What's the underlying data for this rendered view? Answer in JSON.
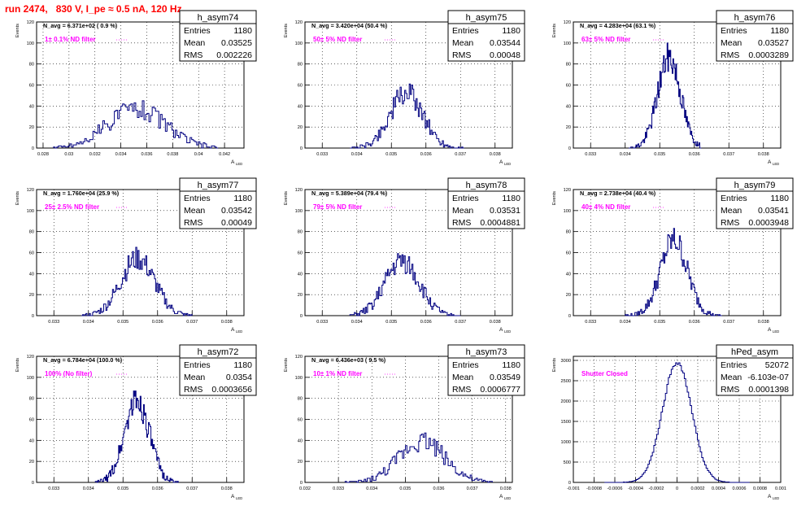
{
  "title": "run 2474,   830 V, I_pe ≈ 0.5 nA, 120 Hz",
  "colors": {
    "histogram": "#000080",
    "annotation": "#ff00ff",
    "title": "#ff0000",
    "grid": "#000000"
  },
  "axis_labels": {
    "y": "Events",
    "x": "A",
    "x_sub": "LED"
  },
  "stat_labels": {
    "entries": "Entries",
    "mean": "Mean",
    "rms": "RMS"
  },
  "chart_data": [
    {
      "type": "histogram",
      "name": "h_asym74",
      "nav": "N_avg = 6.371e+02 ( 0.9 %)",
      "note": "1± 0.1% ND filter",
      "entries": "1180",
      "mean": "0.03525",
      "rms": "0.002226",
      "xlim": [
        0.0275,
        0.0435
      ],
      "ylim": [
        0,
        120
      ],
      "xticks": [
        0.028,
        0.03,
        0.032,
        0.034,
        0.036,
        0.038,
        0.04,
        0.042
      ],
      "xticklabels": [
        "0.028",
        "0.03",
        "0.032",
        "0.034",
        "0.036",
        "0.038",
        "0.04",
        "0.042"
      ],
      "yticks": [
        0,
        20,
        40,
        60,
        80,
        100,
        120
      ],
      "dist": {
        "kind": "gauss",
        "mu": 0.0352,
        "sigma": 0.0022,
        "peak": 38,
        "lo": 0.0288,
        "hi": 0.0415,
        "bins": 100,
        "seed": 74
      }
    },
    {
      "type": "histogram",
      "name": "h_asym75",
      "nav": "N_avg = 3.420e+04 (50.4 %)",
      "note": "50± 5% ND filter",
      "entries": "1180",
      "mean": "0.03544",
      "rms": "0.00048",
      "xlim": [
        0.0325,
        0.0385
      ],
      "ylim": [
        0,
        120
      ],
      "xticks": [
        0.033,
        0.034,
        0.035,
        0.036,
        0.037,
        0.038
      ],
      "xticklabels": [
        "0.033",
        "0.034",
        "0.035",
        "0.036",
        "0.037",
        "0.038"
      ],
      "yticks": [
        0,
        20,
        40,
        60,
        80,
        100,
        120
      ],
      "dist": {
        "kind": "gauss",
        "mu": 0.03544,
        "sigma": 0.00048,
        "peak": 52,
        "lo": 0.0338,
        "hi": 0.0371,
        "bins": 100,
        "seed": 75
      }
    },
    {
      "type": "histogram",
      "name": "h_asym76",
      "nav": "N_avg = 4.283e+04 (63.1 %)",
      "note": "63± 5% ND filter",
      "entries": "1180",
      "mean": "0.03527",
      "rms": "0.0003289",
      "xlim": [
        0.0325,
        0.0385
      ],
      "ylim": [
        0,
        120
      ],
      "xticks": [
        0.033,
        0.034,
        0.035,
        0.036,
        0.037,
        0.038
      ],
      "xticklabels": [
        "0.033",
        "0.034",
        "0.035",
        "0.036",
        "0.037",
        "0.038"
      ],
      "yticks": [
        0,
        20,
        40,
        60,
        80,
        100,
        120
      ],
      "dist": {
        "kind": "gauss",
        "mu": 0.03527,
        "sigma": 0.00033,
        "peak": 86,
        "lo": 0.0341,
        "hi": 0.0362,
        "bins": 100,
        "seed": 76
      }
    },
    {
      "type": "histogram",
      "name": "h_asym77",
      "nav": "N_avg = 1.760e+04 (25.9 %)",
      "note": "25± 2.5% ND filter",
      "entries": "1180",
      "mean": "0.03542",
      "rms": "0.00049",
      "xlim": [
        0.0325,
        0.0385
      ],
      "ylim": [
        0,
        120
      ],
      "xticks": [
        0.033,
        0.034,
        0.035,
        0.036,
        0.037,
        0.038
      ],
      "xticklabels": [
        "0.033",
        "0.034",
        "0.035",
        "0.036",
        "0.037",
        "0.038"
      ],
      "yticks": [
        0,
        20,
        40,
        60,
        80,
        100,
        120
      ],
      "dist": {
        "kind": "gauss",
        "mu": 0.03542,
        "sigma": 0.00049,
        "peak": 54,
        "lo": 0.0338,
        "hi": 0.037,
        "bins": 100,
        "seed": 77
      }
    },
    {
      "type": "histogram",
      "name": "h_asym78",
      "nav": "N_avg = 5.389e+04 (79.4 %)",
      "note": "79± 5% ND filter",
      "entries": "1180",
      "mean": "0.03531",
      "rms": "0.0004881",
      "xlim": [
        0.0325,
        0.0385
      ],
      "ylim": [
        0,
        120
      ],
      "xticks": [
        0.033,
        0.034,
        0.035,
        0.036,
        0.037,
        0.038
      ],
      "xticklabels": [
        "0.033",
        "0.034",
        "0.035",
        "0.036",
        "0.037",
        "0.038"
      ],
      "yticks": [
        0,
        20,
        40,
        60,
        80,
        100,
        120
      ],
      "dist": {
        "kind": "gauss",
        "mu": 0.03531,
        "sigma": 0.00049,
        "peak": 52,
        "lo": 0.0338,
        "hi": 0.037,
        "bins": 100,
        "seed": 78
      }
    },
    {
      "type": "histogram",
      "name": "h_asym79",
      "nav": "N_avg = 2.738e+04 (40.4 %)",
      "note": "40± 4% ND filter",
      "entries": "1180",
      "mean": "0.03541",
      "rms": "0.0003948",
      "xlim": [
        0.0325,
        0.0385
      ],
      "ylim": [
        0,
        120
      ],
      "xticks": [
        0.033,
        0.034,
        0.035,
        0.036,
        0.037,
        0.038
      ],
      "xticklabels": [
        "0.033",
        "0.034",
        "0.035",
        "0.036",
        "0.037",
        "0.038"
      ],
      "yticks": [
        0,
        20,
        40,
        60,
        80,
        100,
        120
      ],
      "dist": {
        "kind": "gauss",
        "mu": 0.03541,
        "sigma": 0.00039,
        "peak": 72,
        "lo": 0.034,
        "hi": 0.0368,
        "bins": 100,
        "seed": 79
      }
    },
    {
      "type": "histogram",
      "name": "h_asym72",
      "nav": "N_avg = 6.784e+04 (100.0 %)",
      "note": "100% (No filter)",
      "entries": "1180",
      "mean": "0.0354",
      "rms": "0.0003656",
      "xlim": [
        0.0325,
        0.0385
      ],
      "ylim": [
        0,
        120
      ],
      "xticks": [
        0.033,
        0.034,
        0.035,
        0.036,
        0.037,
        0.038
      ],
      "xticklabels": [
        "0.033",
        "0.034",
        "0.035",
        "0.036",
        "0.037",
        "0.038"
      ],
      "yticks": [
        0,
        20,
        40,
        60,
        80,
        100,
        120
      ],
      "dist": {
        "kind": "gauss",
        "mu": 0.0354,
        "sigma": 0.00036,
        "peak": 78,
        "lo": 0.0342,
        "hi": 0.0366,
        "bins": 100,
        "seed": 72
      }
    },
    {
      "type": "histogram",
      "name": "h_asym73",
      "nav": "N_avg = 6.436e+03 ( 9.5 %)",
      "note": "10± 1% ND filter",
      "entries": "1180",
      "mean": "0.03549",
      "rms": "0.0006777",
      "xlim": [
        0.032,
        0.0382
      ],
      "ylim": [
        0,
        120
      ],
      "xticks": [
        0.032,
        0.033,
        0.034,
        0.035,
        0.036,
        0.037,
        0.038
      ],
      "xticklabels": [
        "0.032",
        "0.033",
        "0.034",
        "0.035",
        "0.036",
        "0.037",
        "0.038"
      ],
      "yticks": [
        0,
        20,
        40,
        60,
        80,
        100,
        120
      ],
      "dist": {
        "kind": "gauss",
        "mu": 0.0355,
        "sigma": 0.00068,
        "peak": 40,
        "lo": 0.0332,
        "hi": 0.0376,
        "bins": 100,
        "seed": 73
      }
    },
    {
      "type": "histogram",
      "name": "hPed_asym",
      "nav": "",
      "note": "Shutter Closed",
      "entries": "52072",
      "mean": "-6.103e-07",
      "rms": "0.0001398",
      "xlim": [
        -0.001,
        0.001
      ],
      "ylim": [
        0,
        3100
      ],
      "xticks": [
        -0.001,
        -0.0008,
        -0.0006,
        -0.0004,
        -0.0002,
        0,
        0.0002,
        0.0004,
        0.0006,
        0.0008,
        0.001
      ],
      "xticklabels": [
        "-0.001",
        "-0.0008",
        "-0.0006",
        "-0.0004",
        "-0.0002",
        "0",
        "0.0002",
        "0.0004",
        "0.0006",
        "0.0008",
        "0.001"
      ],
      "yticks": [
        0,
        500,
        1000,
        1500,
        2000,
        2500,
        3000
      ],
      "dist": {
        "kind": "gauss",
        "mu": 0.0,
        "sigma": 0.00014,
        "peak": 2950,
        "lo": -0.0007,
        "hi": 0.0007,
        "bins": 100,
        "seed": 99
      }
    }
  ]
}
